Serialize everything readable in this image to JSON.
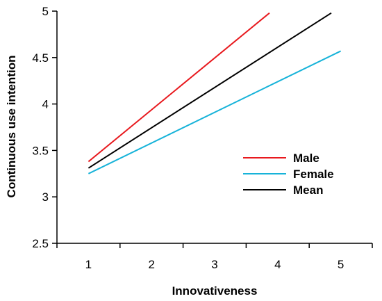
{
  "chart_data": {
    "type": "line",
    "xlabel": "Innovativeness",
    "ylabel": "Continuous use intention",
    "xlim": [
      0.5,
      5.5
    ],
    "ylim": [
      2.5,
      5
    ],
    "xticks": [
      "1",
      "2",
      "3",
      "4",
      "5"
    ],
    "yticks": [
      "2.5",
      "3",
      "3.5",
      "4",
      "4.5",
      "5"
    ],
    "grid": false,
    "legend_position": "right",
    "series": [
      {
        "name": "Male",
        "color": "#e8191e",
        "x": [
          1,
          3.87
        ],
        "y": [
          3.38,
          4.98
        ]
      },
      {
        "name": "Female",
        "color": "#17b3d9",
        "x": [
          1,
          5
        ],
        "y": [
          3.25,
          4.57
        ]
      },
      {
        "name": "Mean",
        "color": "#000000",
        "x": [
          1,
          4.85
        ],
        "y": [
          3.31,
          4.98
        ]
      }
    ]
  }
}
